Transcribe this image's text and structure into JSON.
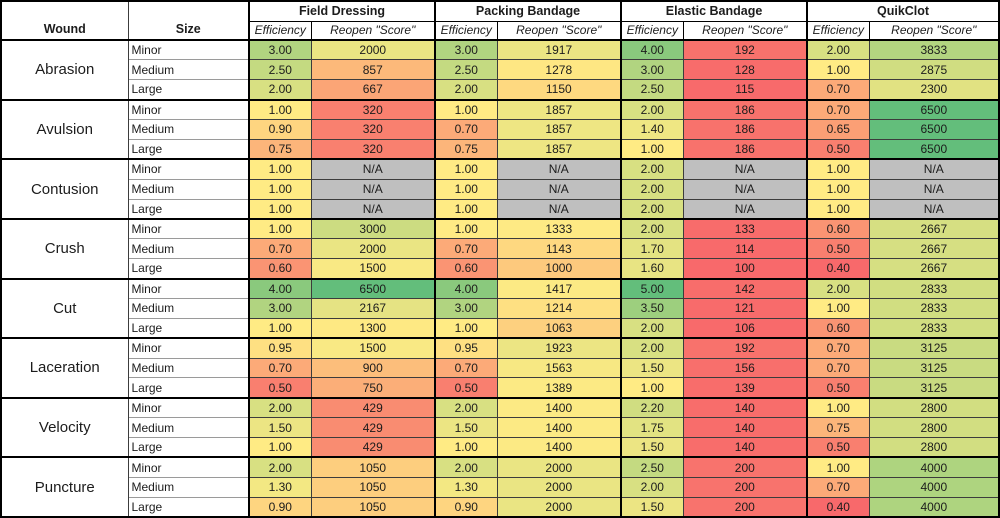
{
  "chart_data": {
    "type": "table",
    "corner": {
      "wound": "Wound",
      "size": "Size"
    },
    "groups": [
      "Field Dressing",
      "Packing Bandage",
      "Elastic Bandage",
      "QuikClot"
    ],
    "subheaders": [
      "Efficiency",
      "Reopen \"Score\""
    ],
    "column_order": [
      "Efficiency",
      "Reopen \"Score\""
    ],
    "na_text": "N/A",
    "na_color": "#BFBFBF",
    "scale_colors": {
      "low": "#F8696B",
      "mid": "#FFEB84",
      "high": "#63BE7B"
    },
    "wounds": [
      {
        "name": "Abrasion",
        "rows": [
          {
            "size": "Minor",
            "cells": [
              [
                "3.00",
                "#B1D480"
              ],
              [
                "2000",
                "#EAE583"
              ],
              [
                "3.00",
                "#B1D480"
              ],
              [
                "1917",
                "#ECE583"
              ],
              [
                "4.00",
                "#8AC97D"
              ],
              [
                "192",
                "#F8726C"
              ],
              [
                "2.00",
                "#D8E082"
              ],
              [
                "3833",
                "#B3D580"
              ]
            ]
          },
          {
            "size": "Medium",
            "cells": [
              [
                "2.50",
                "#C4DA81"
              ],
              [
                "857",
                "#FCB97A"
              ],
              [
                "2.50",
                "#C4DA81"
              ],
              [
                "1278",
                "#FEE783"
              ],
              [
                "3.00",
                "#B1D480"
              ],
              [
                "128",
                "#F86C6B"
              ],
              [
                "1.00",
                "#FFEB84"
              ],
              [
                "2875",
                "#D0DD81"
              ]
            ]
          },
          {
            "size": "Large",
            "cells": [
              [
                "2.00",
                "#D8E082"
              ],
              [
                "667",
                "#FBA576"
              ],
              [
                "2.00",
                "#D8E082"
              ],
              [
                "1150",
                "#FED980"
              ],
              [
                "2.50",
                "#C4DA81"
              ],
              [
                "115",
                "#F86A6B"
              ],
              [
                "0.70",
                "#FCAA78"
              ],
              [
                "2300",
                "#E1E282"
              ]
            ]
          }
        ]
      },
      {
        "name": "Avulsion",
        "rows": [
          {
            "size": "Minor",
            "cells": [
              [
                "1.00",
                "#FFEB84"
              ],
              [
                "320",
                "#F9806F"
              ],
              [
                "1.00",
                "#FFEB84"
              ],
              [
                "1857",
                "#EEE683"
              ],
              [
                "2.00",
                "#D8E082"
              ],
              [
                "186",
                "#F8726C"
              ],
              [
                "0.70",
                "#FCAA78"
              ],
              [
                "6500",
                "#63BE7B"
              ]
            ]
          },
          {
            "size": "Medium",
            "cells": [
              [
                "0.90",
                "#FED580"
              ],
              [
                "320",
                "#F9806F"
              ],
              [
                "0.70",
                "#FCAA78"
              ],
              [
                "1857",
                "#EEE683"
              ],
              [
                "1.40",
                "#EFE783"
              ],
              [
                "186",
                "#F8726C"
              ],
              [
                "0.65",
                "#FB9F75"
              ],
              [
                "6500",
                "#63BE7B"
              ]
            ]
          },
          {
            "size": "Large",
            "cells": [
              [
                "0.75",
                "#FCB57A"
              ],
              [
                "320",
                "#F9806F"
              ],
              [
                "0.75",
                "#FCB57A"
              ],
              [
                "1857",
                "#EEE683"
              ],
              [
                "1.00",
                "#FFEB84"
              ],
              [
                "186",
                "#F8726C"
              ],
              [
                "0.50",
                "#F97F6F"
              ],
              [
                "6500",
                "#63BE7B"
              ]
            ]
          }
        ]
      },
      {
        "name": "Contusion",
        "rows": [
          {
            "size": "Minor",
            "cells": [
              [
                "1.00",
                "#FFEB84"
              ],
              [
                "N/A",
                "#BFBFBF"
              ],
              [
                "1.00",
                "#FFEB84"
              ],
              [
                "N/A",
                "#BFBFBF"
              ],
              [
                "2.00",
                "#D8E082"
              ],
              [
                "N/A",
                "#BFBFBF"
              ],
              [
                "1.00",
                "#FFEB84"
              ],
              [
                "N/A",
                "#BFBFBF"
              ]
            ]
          },
          {
            "size": "Medium",
            "cells": [
              [
                "1.00",
                "#FFEB84"
              ],
              [
                "N/A",
                "#BFBFBF"
              ],
              [
                "1.00",
                "#FFEB84"
              ],
              [
                "N/A",
                "#BFBFBF"
              ],
              [
                "2.00",
                "#D8E082"
              ],
              [
                "N/A",
                "#BFBFBF"
              ],
              [
                "1.00",
                "#FFEB84"
              ],
              [
                "N/A",
                "#BFBFBF"
              ]
            ]
          },
          {
            "size": "Large",
            "cells": [
              [
                "1.00",
                "#FFEB84"
              ],
              [
                "N/A",
                "#BFBFBF"
              ],
              [
                "1.00",
                "#FFEB84"
              ],
              [
                "N/A",
                "#BFBFBF"
              ],
              [
                "2.00",
                "#D8E082"
              ],
              [
                "N/A",
                "#BFBFBF"
              ],
              [
                "1.00",
                "#FFEB84"
              ],
              [
                "N/A",
                "#BFBFBF"
              ]
            ]
          }
        ]
      },
      {
        "name": "Crush",
        "rows": [
          {
            "size": "Minor",
            "cells": [
              [
                "1.00",
                "#FFEB84"
              ],
              [
                "3000",
                "#CCDC81"
              ],
              [
                "1.00",
                "#FFEB84"
              ],
              [
                "1333",
                "#FEEA84"
              ],
              [
                "2.00",
                "#D8E082"
              ],
              [
                "133",
                "#F86C6B"
              ],
              [
                "0.60",
                "#FA9473"
              ],
              [
                "2667",
                "#D6DF82"
              ]
            ]
          },
          {
            "size": "Medium",
            "cells": [
              [
                "0.70",
                "#FCAA78"
              ],
              [
                "2000",
                "#EAE583"
              ],
              [
                "0.70",
                "#FCAA78"
              ],
              [
                "1143",
                "#FED880"
              ],
              [
                "1.70",
                "#E4E382"
              ],
              [
                "114",
                "#F86A6B"
              ],
              [
                "0.50",
                "#F97F6F"
              ],
              [
                "2667",
                "#D6DF82"
              ]
            ]
          },
          {
            "size": "Large",
            "cells": [
              [
                "0.60",
                "#FA9473"
              ],
              [
                "1500",
                "#F9E984"
              ],
              [
                "0.60",
                "#FA9473"
              ],
              [
                "1000",
                "#FDC97D"
              ],
              [
                "1.60",
                "#E8E483"
              ],
              [
                "100",
                "#F8696B"
              ],
              [
                "0.40",
                "#F8696B"
              ],
              [
                "2667",
                "#D6DF82"
              ]
            ]
          }
        ]
      },
      {
        "name": "Cut",
        "rows": [
          {
            "size": "Minor",
            "cells": [
              [
                "4.00",
                "#8AC97D"
              ],
              [
                "6500",
                "#63BE7B"
              ],
              [
                "4.00",
                "#8AC97D"
              ],
              [
                "1417",
                "#FCEA84"
              ],
              [
                "5.00",
                "#63BE7B"
              ],
              [
                "142",
                "#F86D6B"
              ],
              [
                "2.00",
                "#D8E082"
              ],
              [
                "2833",
                "#D1DE81"
              ]
            ]
          },
          {
            "size": "Medium",
            "cells": [
              [
                "3.00",
                "#B1D480"
              ],
              [
                "2167",
                "#E5E383"
              ],
              [
                "3.00",
                "#B1D480"
              ],
              [
                "1214",
                "#FEE082"
              ],
              [
                "3.50",
                "#9DCF7E"
              ],
              [
                "121",
                "#F86B6B"
              ],
              [
                "1.00",
                "#FFEB84"
              ],
              [
                "2833",
                "#D1DE81"
              ]
            ]
          },
          {
            "size": "Large",
            "cells": [
              [
                "1.00",
                "#FFEB84"
              ],
              [
                "1300",
                "#FEE983"
              ],
              [
                "1.00",
                "#FFEB84"
              ],
              [
                "1063",
                "#FDD07F"
              ],
              [
                "2.00",
                "#D8E082"
              ],
              [
                "106",
                "#F86A6B"
              ],
              [
                "0.60",
                "#FA9473"
              ],
              [
                "2833",
                "#D1DE81"
              ]
            ]
          }
        ]
      },
      {
        "name": "Laceration",
        "rows": [
          {
            "size": "Minor",
            "cells": [
              [
                "0.95",
                "#FEE082"
              ],
              [
                "1500",
                "#F9E984"
              ],
              [
                "0.95",
                "#FEE082"
              ],
              [
                "1923",
                "#ECE583"
              ],
              [
                "2.00",
                "#D8E082"
              ],
              [
                "192",
                "#F8726C"
              ],
              [
                "0.70",
                "#FCAA78"
              ],
              [
                "3125",
                "#C9DB81"
              ]
            ]
          },
          {
            "size": "Medium",
            "cells": [
              [
                "0.70",
                "#FCAA78"
              ],
              [
                "900",
                "#FCBE7B"
              ],
              [
                "0.70",
                "#FCAA78"
              ],
              [
                "1563",
                "#F7E883"
              ],
              [
                "1.50",
                "#ECE583"
              ],
              [
                "156",
                "#F86F6C"
              ],
              [
                "0.70",
                "#FCAA78"
              ],
              [
                "3125",
                "#C9DB81"
              ]
            ]
          },
          {
            "size": "Large",
            "cells": [
              [
                "0.50",
                "#F97F6F"
              ],
              [
                "750",
                "#FBAE78"
              ],
              [
                "0.50",
                "#F97F6F"
              ],
              [
                "1389",
                "#FCEA84"
              ],
              [
                "1.00",
                "#FFEB84"
              ],
              [
                "139",
                "#F86D6B"
              ],
              [
                "0.50",
                "#F97F6F"
              ],
              [
                "3125",
                "#C9DB81"
              ]
            ]
          }
        ]
      },
      {
        "name": "Velocity",
        "rows": [
          {
            "size": "Minor",
            "cells": [
              [
                "2.00",
                "#D8E082"
              ],
              [
                "429",
                "#F98C71"
              ],
              [
                "2.00",
                "#D8E082"
              ],
              [
                "1400",
                "#FCEA84"
              ],
              [
                "2.20",
                "#D0DD81"
              ],
              [
                "140",
                "#F86D6B"
              ],
              [
                "1.00",
                "#FFEB84"
              ],
              [
                "2800",
                "#D2DE81"
              ]
            ]
          },
          {
            "size": "Medium",
            "cells": [
              [
                "1.50",
                "#ECE583"
              ],
              [
                "429",
                "#F98C71"
              ],
              [
                "1.50",
                "#ECE583"
              ],
              [
                "1400",
                "#FCEA84"
              ],
              [
                "1.75",
                "#E2E382"
              ],
              [
                "140",
                "#F86D6B"
              ],
              [
                "0.75",
                "#FCB57A"
              ],
              [
                "2800",
                "#D2DE81"
              ]
            ]
          },
          {
            "size": "Large",
            "cells": [
              [
                "1.00",
                "#FFEB84"
              ],
              [
                "429",
                "#F98C71"
              ],
              [
                "1.00",
                "#FFEB84"
              ],
              [
                "1400",
                "#FCEA84"
              ],
              [
                "1.50",
                "#ECE583"
              ],
              [
                "140",
                "#F86D6B"
              ],
              [
                "0.50",
                "#F97F6F"
              ],
              [
                "2800",
                "#D2DE81"
              ]
            ]
          }
        ]
      },
      {
        "name": "Puncture",
        "rows": [
          {
            "size": "Minor",
            "cells": [
              [
                "2.00",
                "#D8E082"
              ],
              [
                "1050",
                "#FDCE7E"
              ],
              [
                "2.00",
                "#D8E082"
              ],
              [
                "2000",
                "#EAE583"
              ],
              [
                "2.50",
                "#C4DA81"
              ],
              [
                "200",
                "#F8736D"
              ],
              [
                "1.00",
                "#FFEB84"
              ],
              [
                "4000",
                "#AED47F"
              ]
            ]
          },
          {
            "size": "Medium",
            "cells": [
              [
                "1.30",
                "#F3E883"
              ],
              [
                "1050",
                "#FDCE7E"
              ],
              [
                "1.30",
                "#F3E883"
              ],
              [
                "2000",
                "#EAE583"
              ],
              [
                "2.00",
                "#D8E082"
              ],
              [
                "200",
                "#F8736D"
              ],
              [
                "0.70",
                "#FCAA78"
              ],
              [
                "4000",
                "#AED47F"
              ]
            ]
          },
          {
            "size": "Large",
            "cells": [
              [
                "0.90",
                "#FED580"
              ],
              [
                "1050",
                "#FDCE7E"
              ],
              [
                "0.90",
                "#FED580"
              ],
              [
                "2000",
                "#EAE583"
              ],
              [
                "1.50",
                "#ECE583"
              ],
              [
                "200",
                "#F8736D"
              ],
              [
                "0.40",
                "#F8696B"
              ],
              [
                "4000",
                "#AED47F"
              ]
            ]
          }
        ]
      }
    ]
  }
}
